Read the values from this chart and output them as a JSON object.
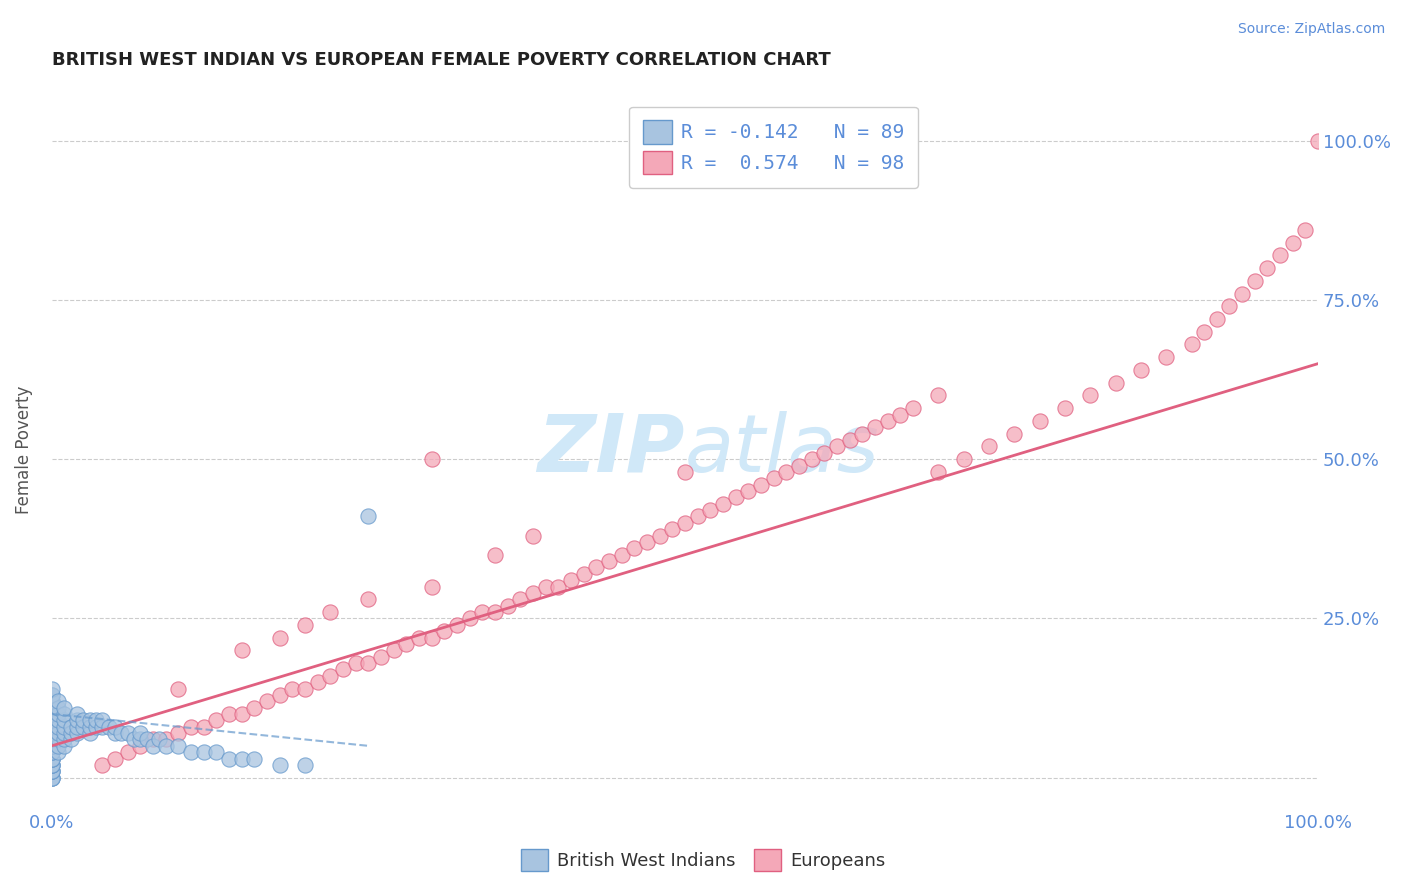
{
  "title": "BRITISH WEST INDIAN VS EUROPEAN FEMALE POVERTY CORRELATION CHART",
  "source": "Source: ZipAtlas.com",
  "ylabel": "Female Poverty",
  "xlim": [
    0,
    1
  ],
  "ylim": [
    -0.05,
    1.08
  ],
  "color_bwi": "#a8c4e0",
  "color_eur": "#f4a8b8",
  "color_bwi_line": "#6699cc",
  "color_eur_line": "#e06080",
  "color_dashed_line": "#cccccc",
  "color_title": "#222222",
  "color_axis_labels": "#5b8dd9",
  "background_color": "#ffffff",
  "watermark_color": "#d0e8f8",
  "bwi_scatter_x": [
    0.0,
    0.0,
    0.0,
    0.0,
    0.0,
    0.0,
    0.0,
    0.0,
    0.0,
    0.0,
    0.0,
    0.0,
    0.0,
    0.0,
    0.0,
    0.0,
    0.0,
    0.0,
    0.0,
    0.0,
    0.0,
    0.0,
    0.0,
    0.0,
    0.0,
    0.0,
    0.0,
    0.0,
    0.0,
    0.0,
    0.0,
    0.0,
    0.0,
    0.0,
    0.0,
    0.005,
    0.005,
    0.005,
    0.005,
    0.005,
    0.005,
    0.005,
    0.005,
    0.005,
    0.01,
    0.01,
    0.01,
    0.01,
    0.01,
    0.01,
    0.01,
    0.015,
    0.015,
    0.015,
    0.02,
    0.02,
    0.02,
    0.02,
    0.025,
    0.025,
    0.03,
    0.03,
    0.03,
    0.035,
    0.035,
    0.04,
    0.04,
    0.045,
    0.05,
    0.05,
    0.055,
    0.06,
    0.065,
    0.07,
    0.07,
    0.075,
    0.08,
    0.085,
    0.09,
    0.1,
    0.11,
    0.12,
    0.13,
    0.14,
    0.15,
    0.16,
    0.18,
    0.2,
    0.25
  ],
  "bwi_scatter_y": [
    0.0,
    0.0,
    0.0,
    0.01,
    0.01,
    0.01,
    0.02,
    0.02,
    0.02,
    0.03,
    0.03,
    0.03,
    0.04,
    0.04,
    0.05,
    0.05,
    0.05,
    0.06,
    0.06,
    0.06,
    0.07,
    0.07,
    0.08,
    0.08,
    0.09,
    0.09,
    0.1,
    0.1,
    0.11,
    0.11,
    0.12,
    0.12,
    0.13,
    0.13,
    0.14,
    0.04,
    0.05,
    0.06,
    0.07,
    0.08,
    0.09,
    0.1,
    0.11,
    0.12,
    0.05,
    0.06,
    0.07,
    0.08,
    0.09,
    0.1,
    0.11,
    0.06,
    0.07,
    0.08,
    0.07,
    0.08,
    0.09,
    0.1,
    0.08,
    0.09,
    0.07,
    0.08,
    0.09,
    0.08,
    0.09,
    0.08,
    0.09,
    0.08,
    0.07,
    0.08,
    0.07,
    0.07,
    0.06,
    0.06,
    0.07,
    0.06,
    0.05,
    0.06,
    0.05,
    0.05,
    0.04,
    0.04,
    0.04,
    0.03,
    0.03,
    0.03,
    0.02,
    0.02,
    0.41
  ],
  "eur_scatter_x": [
    0.04,
    0.05,
    0.06,
    0.07,
    0.08,
    0.09,
    0.1,
    0.1,
    0.11,
    0.12,
    0.13,
    0.14,
    0.15,
    0.15,
    0.16,
    0.17,
    0.18,
    0.18,
    0.19,
    0.2,
    0.2,
    0.21,
    0.22,
    0.22,
    0.23,
    0.24,
    0.25,
    0.25,
    0.26,
    0.27,
    0.28,
    0.29,
    0.3,
    0.3,
    0.31,
    0.32,
    0.33,
    0.34,
    0.35,
    0.35,
    0.36,
    0.37,
    0.38,
    0.38,
    0.39,
    0.4,
    0.41,
    0.42,
    0.43,
    0.44,
    0.45,
    0.46,
    0.47,
    0.48,
    0.49,
    0.5,
    0.51,
    0.52,
    0.53,
    0.54,
    0.55,
    0.56,
    0.57,
    0.58,
    0.59,
    0.6,
    0.61,
    0.62,
    0.63,
    0.64,
    0.65,
    0.66,
    0.67,
    0.68,
    0.7,
    0.72,
    0.74,
    0.76,
    0.78,
    0.8,
    0.82,
    0.84,
    0.86,
    0.88,
    0.9,
    0.91,
    0.92,
    0.93,
    0.94,
    0.95,
    0.96,
    0.97,
    0.98,
    0.99,
    1.0,
    0.3,
    0.5,
    0.7
  ],
  "eur_scatter_y": [
    0.02,
    0.03,
    0.04,
    0.05,
    0.06,
    0.06,
    0.07,
    0.14,
    0.08,
    0.08,
    0.09,
    0.1,
    0.1,
    0.2,
    0.11,
    0.12,
    0.13,
    0.22,
    0.14,
    0.14,
    0.24,
    0.15,
    0.16,
    0.26,
    0.17,
    0.18,
    0.18,
    0.28,
    0.19,
    0.2,
    0.21,
    0.22,
    0.22,
    0.3,
    0.23,
    0.24,
    0.25,
    0.26,
    0.26,
    0.35,
    0.27,
    0.28,
    0.29,
    0.38,
    0.3,
    0.3,
    0.31,
    0.32,
    0.33,
    0.34,
    0.35,
    0.36,
    0.37,
    0.38,
    0.39,
    0.4,
    0.41,
    0.42,
    0.43,
    0.44,
    0.45,
    0.46,
    0.47,
    0.48,
    0.49,
    0.5,
    0.51,
    0.52,
    0.53,
    0.54,
    0.55,
    0.56,
    0.57,
    0.58,
    0.48,
    0.5,
    0.52,
    0.54,
    0.56,
    0.58,
    0.6,
    0.62,
    0.64,
    0.66,
    0.68,
    0.7,
    0.72,
    0.74,
    0.76,
    0.78,
    0.8,
    0.82,
    0.84,
    0.86,
    1.0,
    0.5,
    0.48,
    0.6
  ],
  "eur_line_x0": 0.0,
  "eur_line_x1": 1.0,
  "eur_line_y0": 0.05,
  "eur_line_y1": 0.65,
  "bwi_line_x0": 0.0,
  "bwi_line_x1": 0.25,
  "bwi_line_y0": 0.1,
  "bwi_line_y1": 0.05
}
